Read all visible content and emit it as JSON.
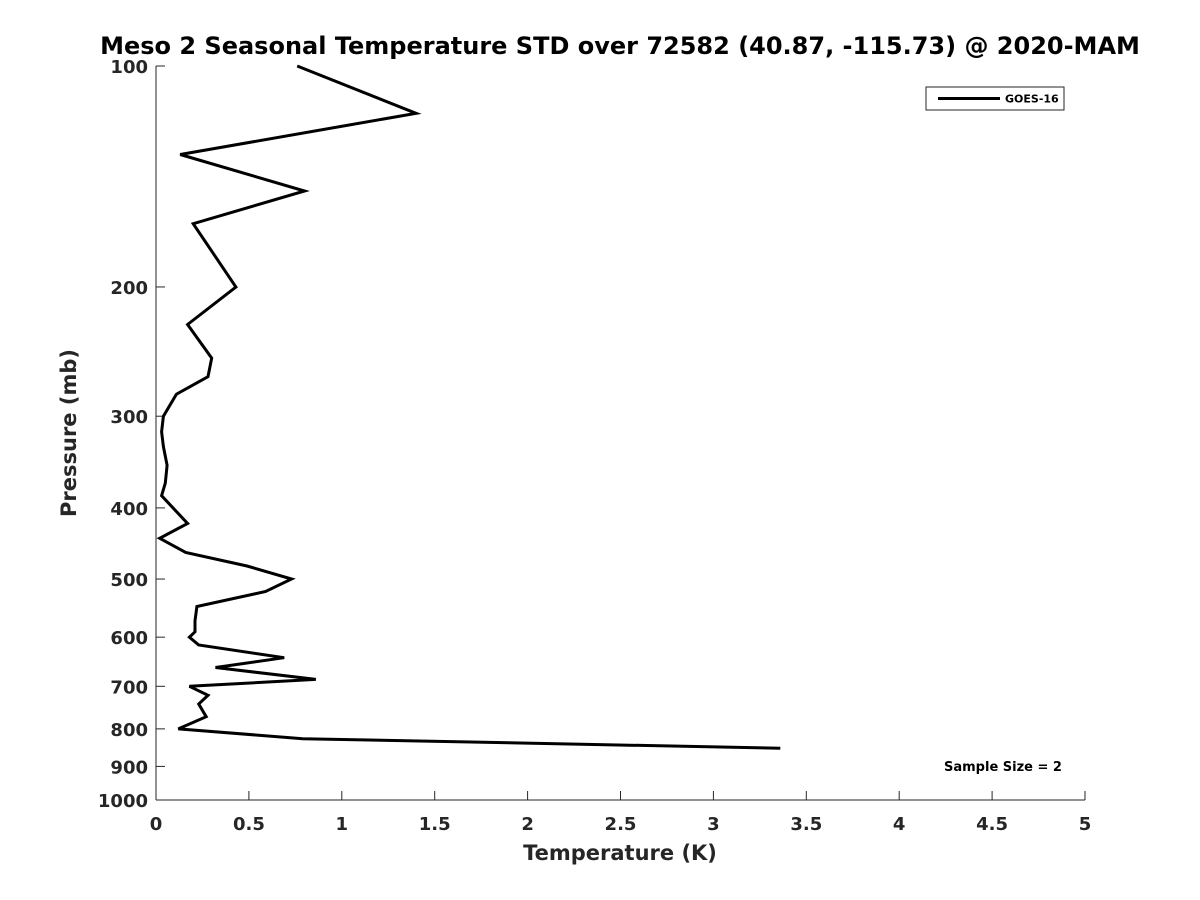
{
  "chart_data": {
    "type": "line",
    "title": "Meso 2 Seasonal Temperature STD over 72582 (40.87, -115.73) @ 2020-MAM",
    "xlabel": "Temperature (K)",
    "ylabel": "Pressure (mb)",
    "xlim": [
      0,
      5
    ],
    "ylim": [
      100,
      1000
    ],
    "y_scale": "log",
    "y_reversed": true,
    "x_ticks": [
      "0",
      "0.5",
      "1",
      "1.5",
      "2",
      "2.5",
      "3",
      "3.5",
      "4",
      "4.5",
      "5"
    ],
    "y_ticks": [
      "100",
      "200",
      "300",
      "400",
      "500",
      "600",
      "700",
      "800",
      "900",
      "1000"
    ],
    "grid": false,
    "legend_position": "top-right",
    "annotation": "Sample Size = 2",
    "series": [
      {
        "name": "GOES-16",
        "color": "#000000",
        "points": [
          {
            "x": 0.76,
            "y": 100
          },
          {
            "x": 1.4,
            "y": 116
          },
          {
            "x": 0.13,
            "y": 132
          },
          {
            "x": 0.8,
            "y": 148
          },
          {
            "x": 0.2,
            "y": 164
          },
          {
            "x": 0.43,
            "y": 200
          },
          {
            "x": 0.17,
            "y": 225
          },
          {
            "x": 0.3,
            "y": 250
          },
          {
            "x": 0.28,
            "y": 265
          },
          {
            "x": 0.11,
            "y": 280
          },
          {
            "x": 0.04,
            "y": 300
          },
          {
            "x": 0.03,
            "y": 315
          },
          {
            "x": 0.04,
            "y": 330
          },
          {
            "x": 0.06,
            "y": 350
          },
          {
            "x": 0.05,
            "y": 370
          },
          {
            "x": 0.03,
            "y": 385
          },
          {
            "x": 0.17,
            "y": 420
          },
          {
            "x": 0.02,
            "y": 440
          },
          {
            "x": 0.16,
            "y": 460
          },
          {
            "x": 0.49,
            "y": 480
          },
          {
            "x": 0.73,
            "y": 500
          },
          {
            "x": 0.59,
            "y": 520
          },
          {
            "x": 0.22,
            "y": 545
          },
          {
            "x": 0.21,
            "y": 570
          },
          {
            "x": 0.21,
            "y": 590
          },
          {
            "x": 0.18,
            "y": 600
          },
          {
            "x": 0.23,
            "y": 615
          },
          {
            "x": 0.69,
            "y": 640
          },
          {
            "x": 0.32,
            "y": 660
          },
          {
            "x": 0.86,
            "y": 685
          },
          {
            "x": 0.18,
            "y": 700
          },
          {
            "x": 0.28,
            "y": 720
          },
          {
            "x": 0.23,
            "y": 740
          },
          {
            "x": 0.27,
            "y": 770
          },
          {
            "x": 0.12,
            "y": 800
          },
          {
            "x": 0.79,
            "y": 825
          },
          {
            "x": 3.36,
            "y": 850
          }
        ]
      }
    ]
  }
}
